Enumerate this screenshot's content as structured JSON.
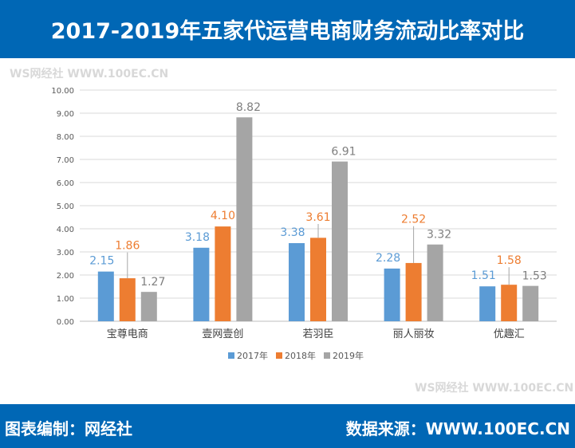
{
  "header": {
    "title": "2017-2019年五家代运营电商财务流动比率对比"
  },
  "footer": {
    "left": "图表编制：网经社",
    "right": "数据来源：WWW.100EC.CN"
  },
  "watermark": "WS网经社 WWW.100EC.CN",
  "chart_data": {
    "type": "bar",
    "title": "2017-2019年五家代运营电商财务流动比率对比",
    "categories": [
      "宝尊电商",
      "壹网壹创",
      "若羽臣",
      "丽人丽妆",
      "优趣汇"
    ],
    "series": [
      {
        "name": "2017年",
        "color": "#5b9bd5",
        "values": [
          2.15,
          3.18,
          3.38,
          2.28,
          1.51
        ]
      },
      {
        "name": "2018年",
        "color": "#ed7d31",
        "values": [
          1.86,
          4.1,
          3.61,
          2.52,
          1.58
        ]
      },
      {
        "name": "2019年",
        "color": "#a5a5a5",
        "values": [
          1.27,
          8.82,
          6.91,
          3.32,
          1.53
        ]
      }
    ],
    "ylim": [
      0,
      10
    ],
    "yticks": [
      "0.00",
      "1.00",
      "2.00",
      "3.00",
      "4.00",
      "5.00",
      "6.00",
      "7.00",
      "8.00",
      "9.00",
      "10.00"
    ],
    "grid": true,
    "legend": "bottom",
    "label_colors": {
      "2017年": "#5b9bd5",
      "2018年": "#ed7d31",
      "2019年": "#7f7f7f"
    }
  }
}
